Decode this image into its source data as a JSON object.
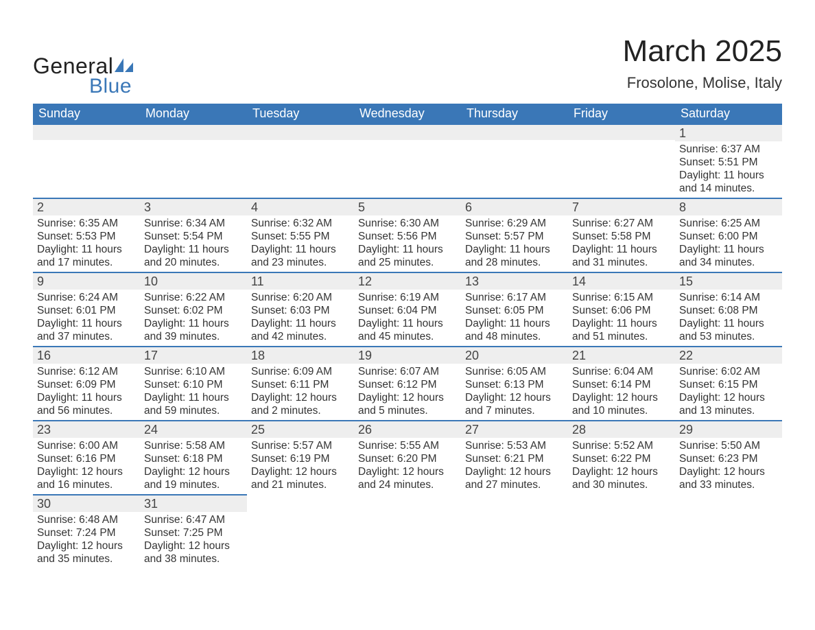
{
  "logo": {
    "word1": "General",
    "word2": "Blue",
    "text_color": "#222222",
    "accent_color": "#3a77b7"
  },
  "title": {
    "month": "March 2025",
    "location": "Frosolone, Molise, Italy"
  },
  "colors": {
    "header_bg": "#3a77b7",
    "header_text": "#ffffff",
    "daynum_bg": "#eeeeee",
    "row_border": "#3a77b7",
    "body_text": "#333333",
    "page_bg": "#ffffff"
  },
  "fonts": {
    "title_size_pt": 33,
    "location_size_pt": 17,
    "header_size_pt": 14,
    "daynum_size_pt": 14,
    "body_size_pt": 12
  },
  "labels": {
    "sunrise": "Sunrise:",
    "sunset": "Sunset:",
    "daylight": "Daylight:"
  },
  "weekdays": [
    "Sunday",
    "Monday",
    "Tuesday",
    "Wednesday",
    "Thursday",
    "Friday",
    "Saturday"
  ],
  "weeks": [
    [
      {
        "empty": true
      },
      {
        "empty": true
      },
      {
        "empty": true
      },
      {
        "empty": true
      },
      {
        "empty": true
      },
      {
        "empty": true
      },
      {
        "n": "1",
        "sr": "6:37 AM",
        "ss": "5:51 PM",
        "dl": "11 hours and 14 minutes."
      }
    ],
    [
      {
        "n": "2",
        "sr": "6:35 AM",
        "ss": "5:53 PM",
        "dl": "11 hours and 17 minutes."
      },
      {
        "n": "3",
        "sr": "6:34 AM",
        "ss": "5:54 PM",
        "dl": "11 hours and 20 minutes."
      },
      {
        "n": "4",
        "sr": "6:32 AM",
        "ss": "5:55 PM",
        "dl": "11 hours and 23 minutes."
      },
      {
        "n": "5",
        "sr": "6:30 AM",
        "ss": "5:56 PM",
        "dl": "11 hours and 25 minutes."
      },
      {
        "n": "6",
        "sr": "6:29 AM",
        "ss": "5:57 PM",
        "dl": "11 hours and 28 minutes."
      },
      {
        "n": "7",
        "sr": "6:27 AM",
        "ss": "5:58 PM",
        "dl": "11 hours and 31 minutes."
      },
      {
        "n": "8",
        "sr": "6:25 AM",
        "ss": "6:00 PM",
        "dl": "11 hours and 34 minutes."
      }
    ],
    [
      {
        "n": "9",
        "sr": "6:24 AM",
        "ss": "6:01 PM",
        "dl": "11 hours and 37 minutes."
      },
      {
        "n": "10",
        "sr": "6:22 AM",
        "ss": "6:02 PM",
        "dl": "11 hours and 39 minutes."
      },
      {
        "n": "11",
        "sr": "6:20 AM",
        "ss": "6:03 PM",
        "dl": "11 hours and 42 minutes."
      },
      {
        "n": "12",
        "sr": "6:19 AM",
        "ss": "6:04 PM",
        "dl": "11 hours and 45 minutes."
      },
      {
        "n": "13",
        "sr": "6:17 AM",
        "ss": "6:05 PM",
        "dl": "11 hours and 48 minutes."
      },
      {
        "n": "14",
        "sr": "6:15 AM",
        "ss": "6:06 PM",
        "dl": "11 hours and 51 minutes."
      },
      {
        "n": "15",
        "sr": "6:14 AM",
        "ss": "6:08 PM",
        "dl": "11 hours and 53 minutes."
      }
    ],
    [
      {
        "n": "16",
        "sr": "6:12 AM",
        "ss": "6:09 PM",
        "dl": "11 hours and 56 minutes."
      },
      {
        "n": "17",
        "sr": "6:10 AM",
        "ss": "6:10 PM",
        "dl": "11 hours and 59 minutes."
      },
      {
        "n": "18",
        "sr": "6:09 AM",
        "ss": "6:11 PM",
        "dl": "12 hours and 2 minutes."
      },
      {
        "n": "19",
        "sr": "6:07 AM",
        "ss": "6:12 PM",
        "dl": "12 hours and 5 minutes."
      },
      {
        "n": "20",
        "sr": "6:05 AM",
        "ss": "6:13 PM",
        "dl": "12 hours and 7 minutes."
      },
      {
        "n": "21",
        "sr": "6:04 AM",
        "ss": "6:14 PM",
        "dl": "12 hours and 10 minutes."
      },
      {
        "n": "22",
        "sr": "6:02 AM",
        "ss": "6:15 PM",
        "dl": "12 hours and 13 minutes."
      }
    ],
    [
      {
        "n": "23",
        "sr": "6:00 AM",
        "ss": "6:16 PM",
        "dl": "12 hours and 16 minutes."
      },
      {
        "n": "24",
        "sr": "5:58 AM",
        "ss": "6:18 PM",
        "dl": "12 hours and 19 minutes."
      },
      {
        "n": "25",
        "sr": "5:57 AM",
        "ss": "6:19 PM",
        "dl": "12 hours and 21 minutes."
      },
      {
        "n": "26",
        "sr": "5:55 AM",
        "ss": "6:20 PM",
        "dl": "12 hours and 24 minutes."
      },
      {
        "n": "27",
        "sr": "5:53 AM",
        "ss": "6:21 PM",
        "dl": "12 hours and 27 minutes."
      },
      {
        "n": "28",
        "sr": "5:52 AM",
        "ss": "6:22 PM",
        "dl": "12 hours and 30 minutes."
      },
      {
        "n": "29",
        "sr": "5:50 AM",
        "ss": "6:23 PM",
        "dl": "12 hours and 33 minutes."
      }
    ],
    [
      {
        "n": "30",
        "sr": "6:48 AM",
        "ss": "7:24 PM",
        "dl": "12 hours and 35 minutes."
      },
      {
        "n": "31",
        "sr": "6:47 AM",
        "ss": "7:25 PM",
        "dl": "12 hours and 38 minutes."
      },
      {
        "empty": true
      },
      {
        "empty": true
      },
      {
        "empty": true
      },
      {
        "empty": true
      },
      {
        "empty": true
      }
    ]
  ]
}
